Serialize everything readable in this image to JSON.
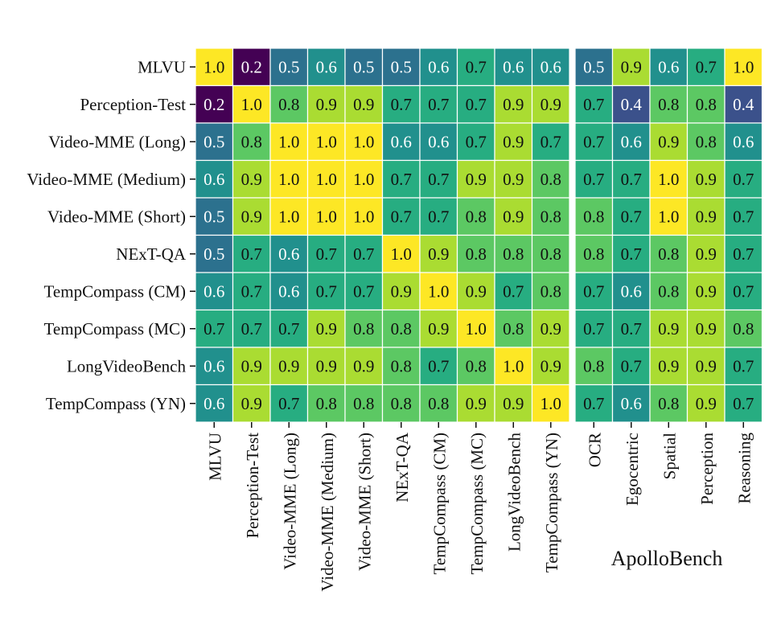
{
  "chart_data": {
    "type": "heatmap",
    "row_labels": [
      "MLVU",
      "Perception-Test",
      "Video-MME (Long)",
      "Video-MME (Medium)",
      "Video-MME (Short)",
      "NExT-QA",
      "TempCompass (CM)",
      "TempCompass (MC)",
      "LongVideoBench",
      "TempCompass (YN)"
    ],
    "col_labels_left": [
      "MLVU",
      "Perception-Test",
      "Video-MME (Long)",
      "Video-MME (Medium)",
      "Video-MME (Short)",
      "NExT-QA",
      "TempCompass (CM)",
      "TempCompass (MC)",
      "LongVideoBench",
      "TempCompass (YN)"
    ],
    "col_labels_right": [
      "OCR",
      "Egocentric",
      "Spatial",
      "Perception",
      "Reasoning"
    ],
    "right_group_label": "ApolloBench",
    "values_left": [
      [
        "1.0",
        "0.2",
        "0.5",
        "0.6",
        "0.5",
        "0.5",
        "0.6",
        "0.7",
        "0.6",
        "0.6"
      ],
      [
        "0.2",
        "1.0",
        "0.8",
        "0.9",
        "0.9",
        "0.7",
        "0.7",
        "0.7",
        "0.9",
        "0.9"
      ],
      [
        "0.5",
        "0.8",
        "1.0",
        "1.0",
        "1.0",
        "0.6",
        "0.6",
        "0.7",
        "0.9",
        "0.7"
      ],
      [
        "0.6",
        "0.9",
        "1.0",
        "1.0",
        "1.0",
        "0.7",
        "0.7",
        "0.9",
        "0.9",
        "0.8"
      ],
      [
        "0.5",
        "0.9",
        "1.0",
        "1.0",
        "1.0",
        "0.7",
        "0.7",
        "0.8",
        "0.9",
        "0.8"
      ],
      [
        "0.5",
        "0.7",
        "0.6",
        "0.7",
        "0.7",
        "1.0",
        "0.9",
        "0.8",
        "0.8",
        "0.8"
      ],
      [
        "0.6",
        "0.7",
        "0.6",
        "0.7",
        "0.7",
        "0.9",
        "1.0",
        "0.9",
        "0.7",
        "0.8"
      ],
      [
        "0.7",
        "0.7",
        "0.7",
        "0.9",
        "0.8",
        "0.8",
        "0.9",
        "1.0",
        "0.8",
        "0.9"
      ],
      [
        "0.6",
        "0.9",
        "0.9",
        "0.9",
        "0.9",
        "0.8",
        "0.7",
        "0.8",
        "1.0",
        "0.9"
      ],
      [
        "0.6",
        "0.9",
        "0.7",
        "0.8",
        "0.8",
        "0.8",
        "0.8",
        "0.9",
        "0.9",
        "1.0"
      ]
    ],
    "values_right": [
      [
        "0.5",
        "0.9",
        "0.6",
        "0.7",
        "1.0"
      ],
      [
        "0.7",
        "0.4",
        "0.8",
        "0.8",
        "0.4"
      ],
      [
        "0.7",
        "0.6",
        "0.9",
        "0.8",
        "0.6"
      ],
      [
        "0.7",
        "0.7",
        "1.0",
        "0.9",
        "0.7"
      ],
      [
        "0.8",
        "0.7",
        "1.0",
        "0.9",
        "0.7"
      ],
      [
        "0.8",
        "0.7",
        "0.8",
        "0.9",
        "0.7"
      ],
      [
        "0.7",
        "0.6",
        "0.8",
        "0.9",
        "0.7"
      ],
      [
        "0.7",
        "0.7",
        "0.9",
        "0.9",
        "0.8"
      ],
      [
        "0.8",
        "0.7",
        "0.9",
        "0.9",
        "0.7"
      ],
      [
        "0.7",
        "0.6",
        "0.8",
        "0.9",
        "0.7"
      ]
    ],
    "value_range": [
      0.2,
      1.0
    ],
    "colormap": "viridis",
    "grid": true
  }
}
